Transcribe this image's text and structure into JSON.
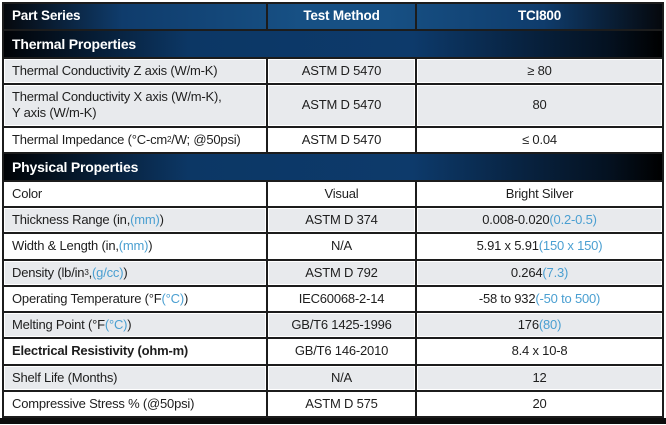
{
  "colors": {
    "header_blue": "#175084",
    "band_blue": "#0d3a6b",
    "edge_black": "#05080d",
    "row_gray": "#e8eaed",
    "border": "#1c1c1c",
    "accent_blue_text": "#4a9fd1",
    "header_text": "#ffffff",
    "body_text": "#1e1e1e"
  },
  "header": {
    "columns": [
      "Part Series",
      "Test Method",
      "TCI800"
    ]
  },
  "sections": [
    {
      "title": "Thermal Properties",
      "rows": [
        {
          "label": [
            [
              "Thermal Conductivity Z axis (W/m-K)",
              "p"
            ]
          ],
          "method": "ASTM D 5470",
          "value": [
            [
              "≥ 80",
              "p"
            ]
          ],
          "shaded": true,
          "bold": false
        },
        {
          "label": [
            [
              "Thermal Conductivity X axis (W/m-K),\nY axis (W/m-K)",
              "p"
            ]
          ],
          "method": "ASTM D 5470",
          "value": [
            [
              "80",
              "p"
            ]
          ],
          "shaded": true,
          "bold": false
        },
        {
          "label": [
            [
              "Thermal Impedance (°C-cm",
              "p"
            ],
            [
              "2",
              "sup"
            ],
            [
              "/W; @50psi)",
              "p"
            ]
          ],
          "method": "ASTM D 5470",
          "value": [
            [
              "≤ 0.04",
              "p"
            ]
          ],
          "shaded": false,
          "bold": false
        }
      ]
    },
    {
      "title": "Physical Properties",
      "rows": [
        {
          "label": [
            [
              "Color",
              "p"
            ]
          ],
          "method": "Visual",
          "value": [
            [
              "Bright Silver",
              "p"
            ]
          ],
          "shaded": false,
          "bold": false
        },
        {
          "label": [
            [
              "Thickness Range (in, ",
              "p"
            ],
            [
              "(mm)",
              "b"
            ],
            [
              ")",
              "p"
            ]
          ],
          "method": "ASTM D 374",
          "value": [
            [
              "0.008-0.020 ",
              "p"
            ],
            [
              "(0.2-0.5)",
              "b"
            ]
          ],
          "shaded": true,
          "bold": false
        },
        {
          "label": [
            [
              "Width & Length (in, ",
              "p"
            ],
            [
              "(mm)",
              "b"
            ],
            [
              ")",
              "p"
            ]
          ],
          "method": "N/A",
          "value": [
            [
              "5.91 x 5.91 ",
              "p"
            ],
            [
              "(150 x 150)",
              "b"
            ]
          ],
          "shaded": false,
          "bold": false
        },
        {
          "label": [
            [
              "Density (lb/in",
              "p"
            ],
            [
              "3",
              "sup"
            ],
            [
              ", ",
              "p"
            ],
            [
              "(g/cc)",
              "b"
            ],
            [
              ")",
              "p"
            ]
          ],
          "method": "ASTM D 792",
          "value": [
            [
              "0.264 ",
              "p"
            ],
            [
              "(7.3)",
              "b"
            ]
          ],
          "shaded": true,
          "bold": false
        },
        {
          "label": [
            [
              "Operating Temperature (°F ",
              "p"
            ],
            [
              "(°C)",
              "b"
            ],
            [
              ")",
              "p"
            ]
          ],
          "method": "IEC60068-2-14",
          "value": [
            [
              "-58 to 932 ",
              "p"
            ],
            [
              "(-50 to 500)",
              "b"
            ]
          ],
          "shaded": false,
          "bold": false
        },
        {
          "label": [
            [
              "Melting Point (°F ",
              "p"
            ],
            [
              "(°C)",
              "b"
            ],
            [
              ")",
              "p"
            ]
          ],
          "method": "GB/T6 1425-1996",
          "value": [
            [
              "176 ",
              "p"
            ],
            [
              "(80)",
              "b"
            ]
          ],
          "shaded": true,
          "bold": false
        },
        {
          "label": [
            [
              "Electrical Resistivity (ohm-m)",
              "p"
            ]
          ],
          "method": "GB/T6 146-2010",
          "value": [
            [
              "8.4 x 10-8",
              "p"
            ]
          ],
          "shaded": false,
          "bold": true
        },
        {
          "label": [
            [
              "Shelf Life (Months)",
              "p"
            ]
          ],
          "method": "N/A",
          "value": [
            [
              "12",
              "p"
            ]
          ],
          "shaded": true,
          "bold": false
        },
        {
          "label": [
            [
              "Compressive Stress % (@50psi)",
              "p"
            ]
          ],
          "method": "ASTM D 575",
          "value": [
            [
              "20",
              "p"
            ]
          ],
          "shaded": false,
          "bold": false
        }
      ]
    }
  ]
}
